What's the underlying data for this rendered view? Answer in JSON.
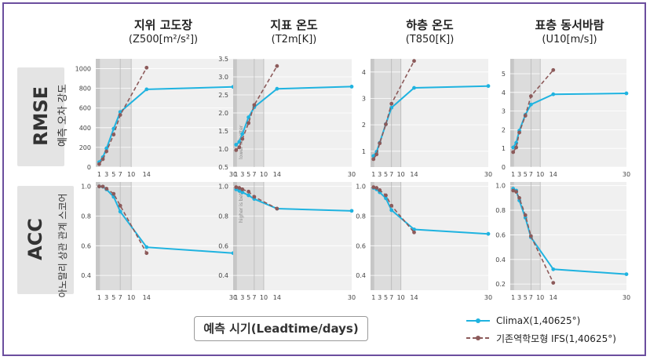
{
  "columns": [
    {
      "title": "지위 고도장",
      "subtitle": "(Z500[m²/s²])"
    },
    {
      "title": "지표 온도",
      "subtitle": "(T2m[K])"
    },
    {
      "title": "하층 온도",
      "subtitle": "(T850[K])"
    },
    {
      "title": "표층 동서바람",
      "subtitle": "(U10[m/s])"
    }
  ],
  "rows": [
    {
      "title": "RMSE",
      "subtitle": "예측 오차 강도"
    },
    {
      "title": "ACC",
      "subtitle": "아노말리 상관 관계 스코어"
    }
  ],
  "xlabel": "예측 시기(Leadtime/days)",
  "legend": [
    {
      "label": "ClimaX(1,40625°)",
      "color": "#1fb3e0",
      "style": "solid"
    },
    {
      "label": "기존역학모형 IFS(1,40625°)",
      "color": "#8c5a5a",
      "style": "dashed"
    }
  ],
  "colors": {
    "climax": "#1fb3e0",
    "ifs": "#8c5a5a",
    "frame": "#6b4e9e"
  },
  "chart_data": [
    {
      "type": "line",
      "row": "RMSE",
      "column": "Z500",
      "x": [
        1,
        2,
        3,
        5,
        6,
        7,
        14,
        30
      ],
      "xticks": [
        1,
        3,
        5,
        7,
        10,
        14,
        30
      ],
      "ylim": [
        0,
        1100
      ],
      "yticks": [
        0,
        200,
        400,
        600,
        800,
        1000
      ],
      "series": [
        {
          "name": "ClimaX(1,40625°)",
          "x": [
            1,
            2,
            3,
            5,
            7,
            14,
            30
          ],
          "values": [
            50,
            100,
            190,
            390,
            560,
            790,
            815
          ]
        },
        {
          "name": "기존역학모형 IFS(1,40625°)",
          "x": [
            1,
            2,
            3,
            5,
            7,
            14
          ],
          "values": [
            30,
            80,
            160,
            330,
            530,
            1010
          ]
        }
      ]
    },
    {
      "type": "line",
      "row": "RMSE",
      "column": "T2m",
      "xticks": [
        1,
        3,
        5,
        7,
        10,
        14,
        30
      ],
      "ylim": [
        0.5,
        3.5
      ],
      "yticks": [
        0.5,
        1.0,
        1.5,
        2.0,
        2.5,
        3.0,
        3.5
      ],
      "annotation": "lower is better",
      "series": [
        {
          "name": "ClimaX(1,40625°)",
          "x": [
            1,
            2,
            3,
            5,
            7,
            14,
            30
          ],
          "values": [
            1.12,
            1.2,
            1.42,
            1.88,
            2.16,
            2.67,
            2.73
          ]
        },
        {
          "name": "기존역학모형 IFS(1,40625°)",
          "x": [
            1,
            2,
            3,
            5,
            7,
            14
          ],
          "values": [
            0.97,
            1.05,
            1.28,
            1.72,
            2.22,
            3.3
          ]
        }
      ]
    },
    {
      "type": "line",
      "row": "RMSE",
      "column": "T850",
      "xticks": [
        1,
        3,
        5,
        7,
        10,
        14,
        30
      ],
      "ylim": [
        0.4,
        4.5
      ],
      "yticks": [
        1,
        2,
        3,
        4
      ],
      "series": [
        {
          "name": "ClimaX(1,40625°)",
          "x": [
            1,
            2,
            3,
            5,
            7,
            14,
            30
          ],
          "values": [
            0.82,
            0.98,
            1.32,
            2.03,
            2.65,
            3.4,
            3.47
          ]
        },
        {
          "name": "기존역학모형 IFS(1,40625°)",
          "x": [
            1,
            2,
            3,
            5,
            7,
            14
          ],
          "values": [
            0.7,
            0.88,
            1.3,
            2.02,
            2.8,
            4.42
          ]
        }
      ]
    },
    {
      "type": "line",
      "row": "RMSE",
      "column": "U10",
      "xticks": [
        1,
        3,
        5,
        7,
        10,
        14,
        30
      ],
      "ylim": [
        0,
        5.8
      ],
      "yticks": [
        0,
        1,
        2,
        3,
        4,
        5
      ],
      "series": [
        {
          "name": "ClimaX(1,40625°)",
          "x": [
            1,
            2,
            3,
            5,
            7,
            14,
            30
          ],
          "values": [
            1.05,
            1.3,
            1.95,
            2.8,
            3.35,
            3.9,
            3.95
          ]
        },
        {
          "name": "기존역학모형 IFS(1,40625°)",
          "x": [
            1,
            2,
            3,
            5,
            7,
            14
          ],
          "values": [
            0.8,
            1.05,
            1.85,
            2.75,
            3.8,
            5.2
          ]
        }
      ]
    },
    {
      "type": "line",
      "row": "ACC",
      "column": "Z500",
      "xticks": [
        1,
        3,
        5,
        7,
        10,
        14,
        30
      ],
      "ylim": [
        0.3,
        1.03
      ],
      "yticks": [
        0.4,
        0.6,
        0.8,
        1.0
      ],
      "series": [
        {
          "name": "ClimaX(1,40625°)",
          "x": [
            1,
            2,
            3,
            5,
            7,
            14,
            30
          ],
          "values": [
            1.0,
            0.998,
            0.98,
            0.93,
            0.83,
            0.59,
            0.55
          ]
        },
        {
          "name": "기존역학모형 IFS(1,40625°)",
          "x": [
            1,
            2,
            3,
            5,
            7,
            14
          ],
          "values": [
            1.0,
            0.999,
            0.985,
            0.95,
            0.87,
            0.55
          ]
        }
      ]
    },
    {
      "type": "line",
      "row": "ACC",
      "column": "T2m",
      "xticks": [
        1,
        3,
        5,
        7,
        10,
        14,
        30
      ],
      "ylim": [
        0.3,
        1.03
      ],
      "yticks": [
        0.4,
        0.6,
        0.8,
        1.0
      ],
      "annotation": "higher is better",
      "series": [
        {
          "name": "ClimaX(1,40625°)",
          "x": [
            1,
            2,
            3,
            5,
            7,
            14,
            30
          ],
          "values": [
            0.98,
            0.97,
            0.96,
            0.94,
            0.915,
            0.85,
            0.835
          ]
        },
        {
          "name": "기존역학모형 IFS(1,40625°)",
          "x": [
            1,
            2,
            3,
            5,
            7,
            14
          ],
          "values": [
            0.995,
            0.99,
            0.98,
            0.965,
            0.93,
            0.85
          ]
        }
      ]
    },
    {
      "type": "line",
      "row": "ACC",
      "column": "T850",
      "xticks": [
        1,
        3,
        5,
        7,
        10,
        14,
        30
      ],
      "ylim": [
        0.3,
        1.03
      ],
      "yticks": [
        0.4,
        0.6,
        0.8,
        1.0
      ],
      "series": [
        {
          "name": "ClimaX(1,40625°)",
          "x": [
            1,
            2,
            3,
            5,
            7,
            14,
            30
          ],
          "values": [
            0.99,
            0.98,
            0.96,
            0.92,
            0.84,
            0.71,
            0.68
          ]
        },
        {
          "name": "기존역학모형 IFS(1,40625°)",
          "x": [
            1,
            2,
            3,
            5,
            7,
            14
          ],
          "values": [
            0.995,
            0.99,
            0.975,
            0.94,
            0.87,
            0.69
          ]
        }
      ]
    },
    {
      "type": "line",
      "row": "ACC",
      "column": "U10",
      "xticks": [
        1,
        3,
        5,
        7,
        10,
        14,
        30
      ],
      "ylim": [
        0.15,
        1.03
      ],
      "yticks": [
        0.2,
        0.4,
        0.6,
        0.8,
        1.0
      ],
      "series": [
        {
          "name": "ClimaX(1,40625°)",
          "x": [
            1,
            2,
            3,
            5,
            7,
            14,
            30
          ],
          "values": [
            0.975,
            0.96,
            0.88,
            0.74,
            0.58,
            0.32,
            0.28
          ]
        },
        {
          "name": "기존역학모형 IFS(1,40625°)",
          "x": [
            1,
            2,
            3,
            5,
            7,
            14
          ],
          "values": [
            0.96,
            0.95,
            0.9,
            0.76,
            0.59,
            0.21
          ]
        }
      ]
    }
  ]
}
